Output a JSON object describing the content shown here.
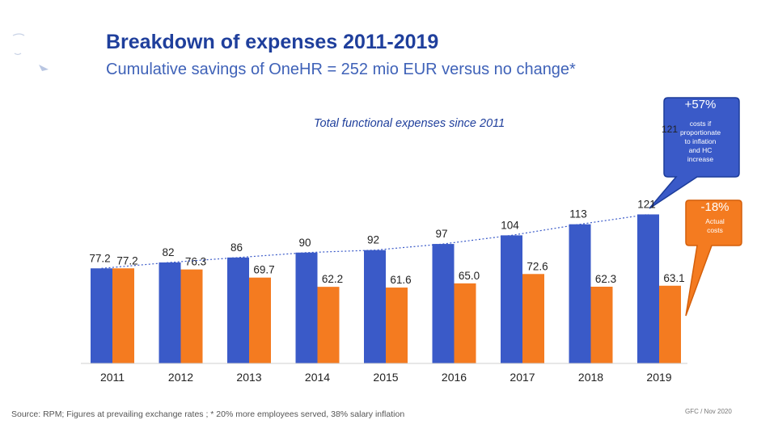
{
  "header": {
    "title": "Breakdown of expenses 2011-2019",
    "subtitle": "Cumulative savings of OneHR = 252 mio EUR versus no change*"
  },
  "footer": {
    "source": "Source: RPM; Figures at prevailing exchange rates ; * 20% more employees served, 38% salary inflation",
    "reference": "GFC / Nov 2020"
  },
  "callouts": {
    "inflation": {
      "pct": "+57%",
      "value": "121",
      "text": [
        "costs if",
        "proportionate",
        "to inflation",
        "and HC",
        "increase"
      ]
    },
    "actual": {
      "pct": "-18%",
      "text": [
        "Actual",
        "costs"
      ]
    }
  },
  "colors": {
    "blue": "#3a5ac8",
    "orange": "#f47b20",
    "title": "#1f3f9c",
    "trend": "#3a5ac8"
  },
  "chart_data": {
    "type": "bar",
    "title": "Total functional expenses since 2011",
    "categories": [
      "2011",
      "2012",
      "2013",
      "2014",
      "2015",
      "2016",
      "2017",
      "2018",
      "2019"
    ],
    "series": [
      {
        "values": [
          77.2,
          82,
          86,
          90,
          92,
          97,
          104,
          113,
          121
        ],
        "labels": [
          "77.2",
          "82",
          "86",
          "90",
          "92",
          "97",
          "104",
          "113",
          "121"
        ]
      },
      {
        "values": [
          77.2,
          76.3,
          69.7,
          62.2,
          61.6,
          65.0,
          72.6,
          62.3,
          63.1
        ],
        "labels": [
          "77.2",
          "76.3",
          "69.7",
          "62.2",
          "61.6",
          "65.0",
          "72.6",
          "62.3",
          "63.1"
        ]
      }
    ],
    "trendline": "dotted line along blue bar tops",
    "ylim": [
      0,
      135
    ],
    "grid": false,
    "legend": "none"
  }
}
